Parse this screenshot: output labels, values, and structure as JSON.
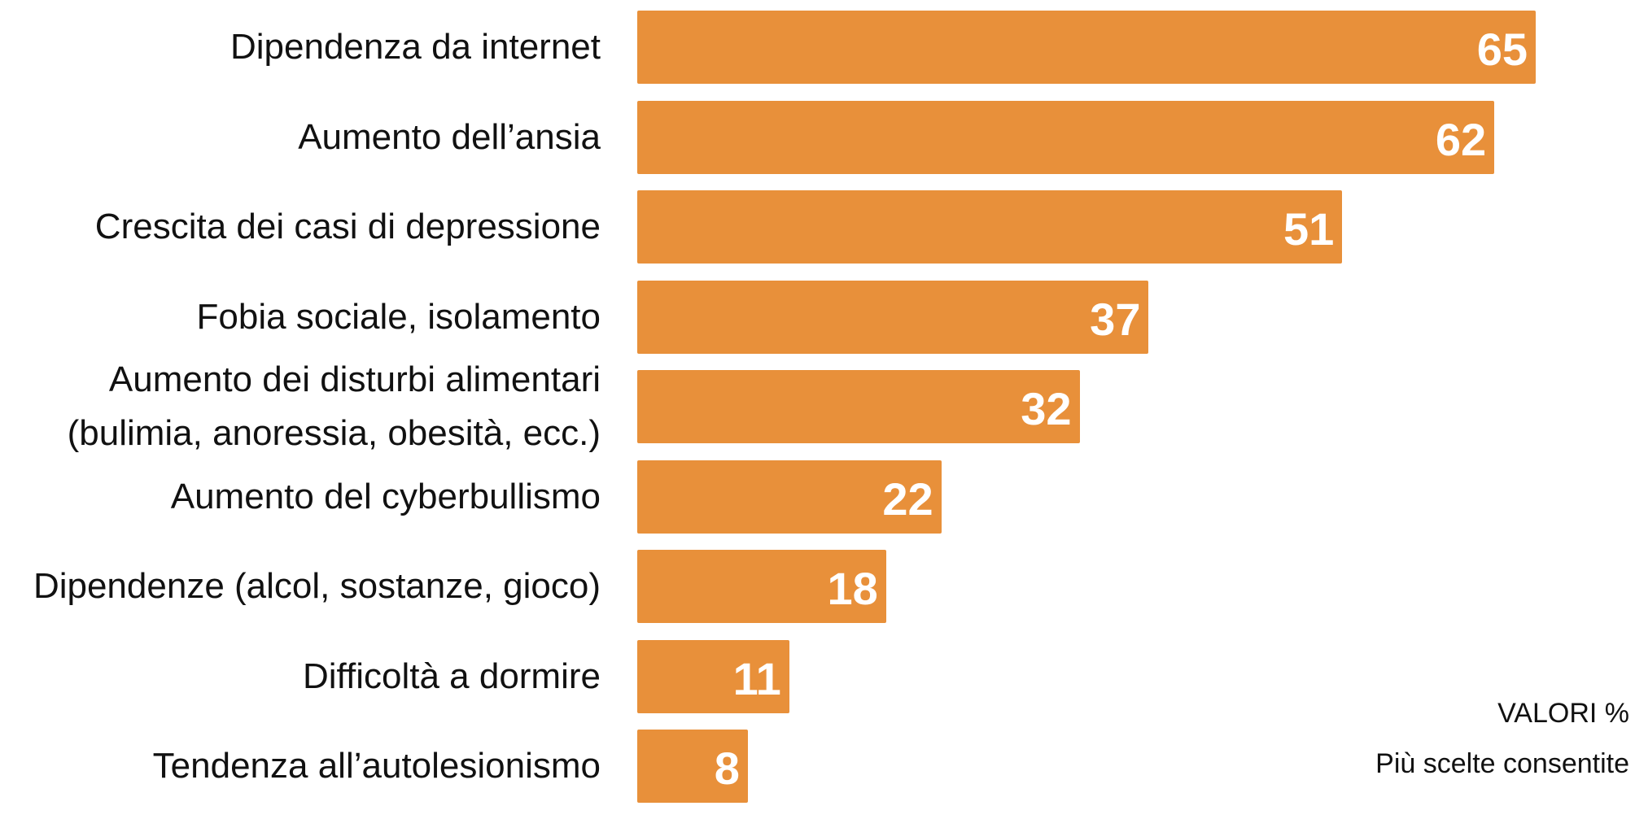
{
  "chart_data": {
    "type": "bar",
    "orientation": "horizontal",
    "color": "#e8903a",
    "categories": [
      "Dipendenza da internet",
      "Aumento dell’ansia",
      "Crescita dei casi di depressione",
      "Fobia sociale, isolamento",
      "Aumento dei disturbi alimentari\n(bulimia, anoressia, obesità, ecc.)",
      "Aumento del cyberbullismo",
      "Dipendenze (alcol, sostanze, gioco)",
      "Difficoltà a dormire",
      "Tendenza all’autolesionismo"
    ],
    "values": [
      65,
      62,
      51,
      37,
      32,
      22,
      18,
      11,
      8
    ],
    "xlim": [
      0,
      70
    ],
    "notes": [
      "VALORI %",
      "Più scelte consentite"
    ]
  }
}
